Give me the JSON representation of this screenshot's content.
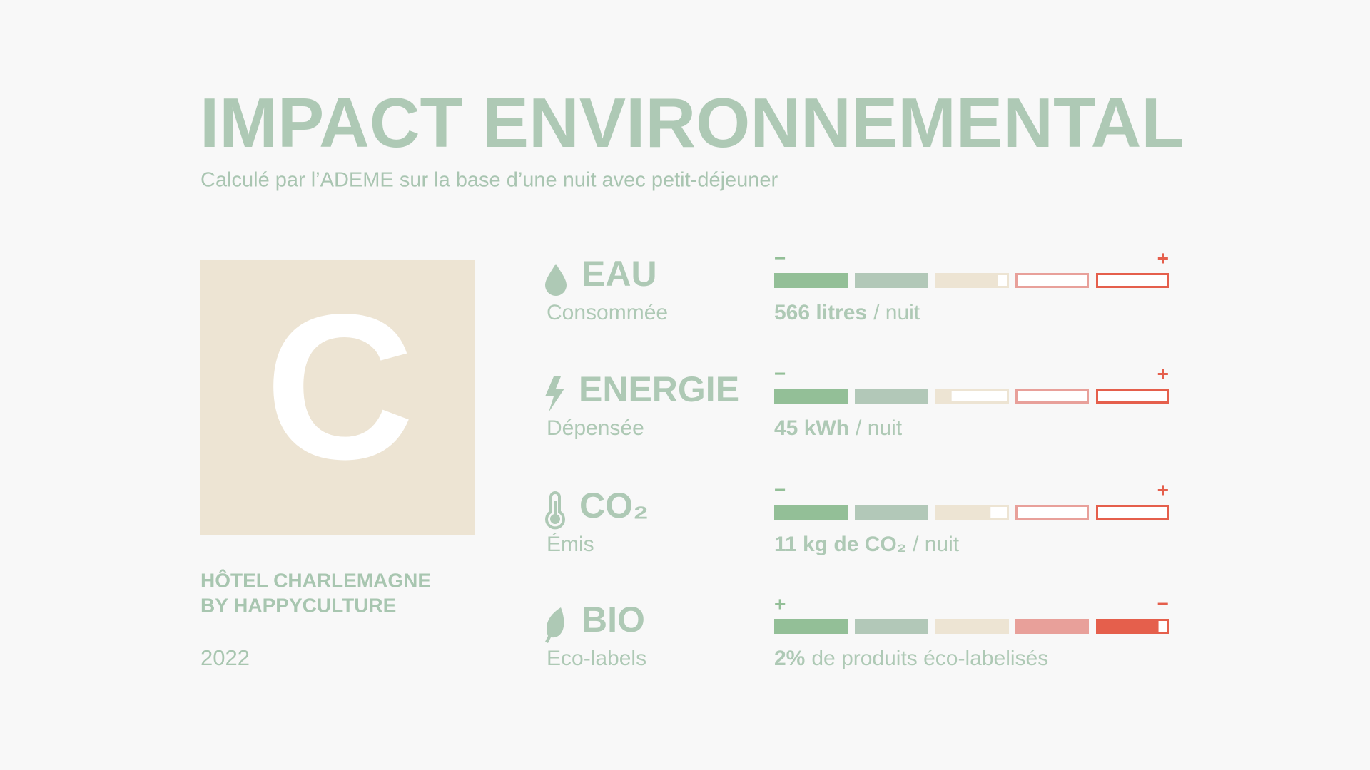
{
  "header": {
    "title": "IMPACT ENVIRONNEMENTAL",
    "subtitle": "Calculé par l’ADEME sur la base d’une nuit avec petit-déjeuner"
  },
  "grade": "C",
  "hotel": {
    "line1": "HÔTEL CHARLEMAGNE",
    "line2": "BY HAPPYCULTURE",
    "year": "2022"
  },
  "segment_colors": [
    "#93bf97",
    "#b2c8b8",
    "#ede4d3",
    "#e8a09a",
    "#e55f4c"
  ],
  "indicators": [
    {
      "name": "EAU",
      "sub": "Consommée",
      "value": "566 litres",
      "unit": "/ nuit",
      "scale_start": "−",
      "scale_end": "+",
      "level": 2.85
    },
    {
      "name": "ENERGIE",
      "sub": "Dépensée",
      "value": "45 kWh",
      "unit": "/ nuit",
      "scale_start": "−",
      "scale_end": "+",
      "level": 2.22
    },
    {
      "name": "CO₂",
      "sub": "Émis",
      "value": "11 kg de CO₂",
      "unit": "/ nuit",
      "scale_start": "−",
      "scale_end": "+",
      "level": 2.75
    },
    {
      "name": "BIO",
      "sub": "Eco-labels",
      "value": "2%",
      "unit": "de produits éco-labelisés",
      "scale_start": "+",
      "scale_end": "−",
      "level": 4.85
    }
  ]
}
